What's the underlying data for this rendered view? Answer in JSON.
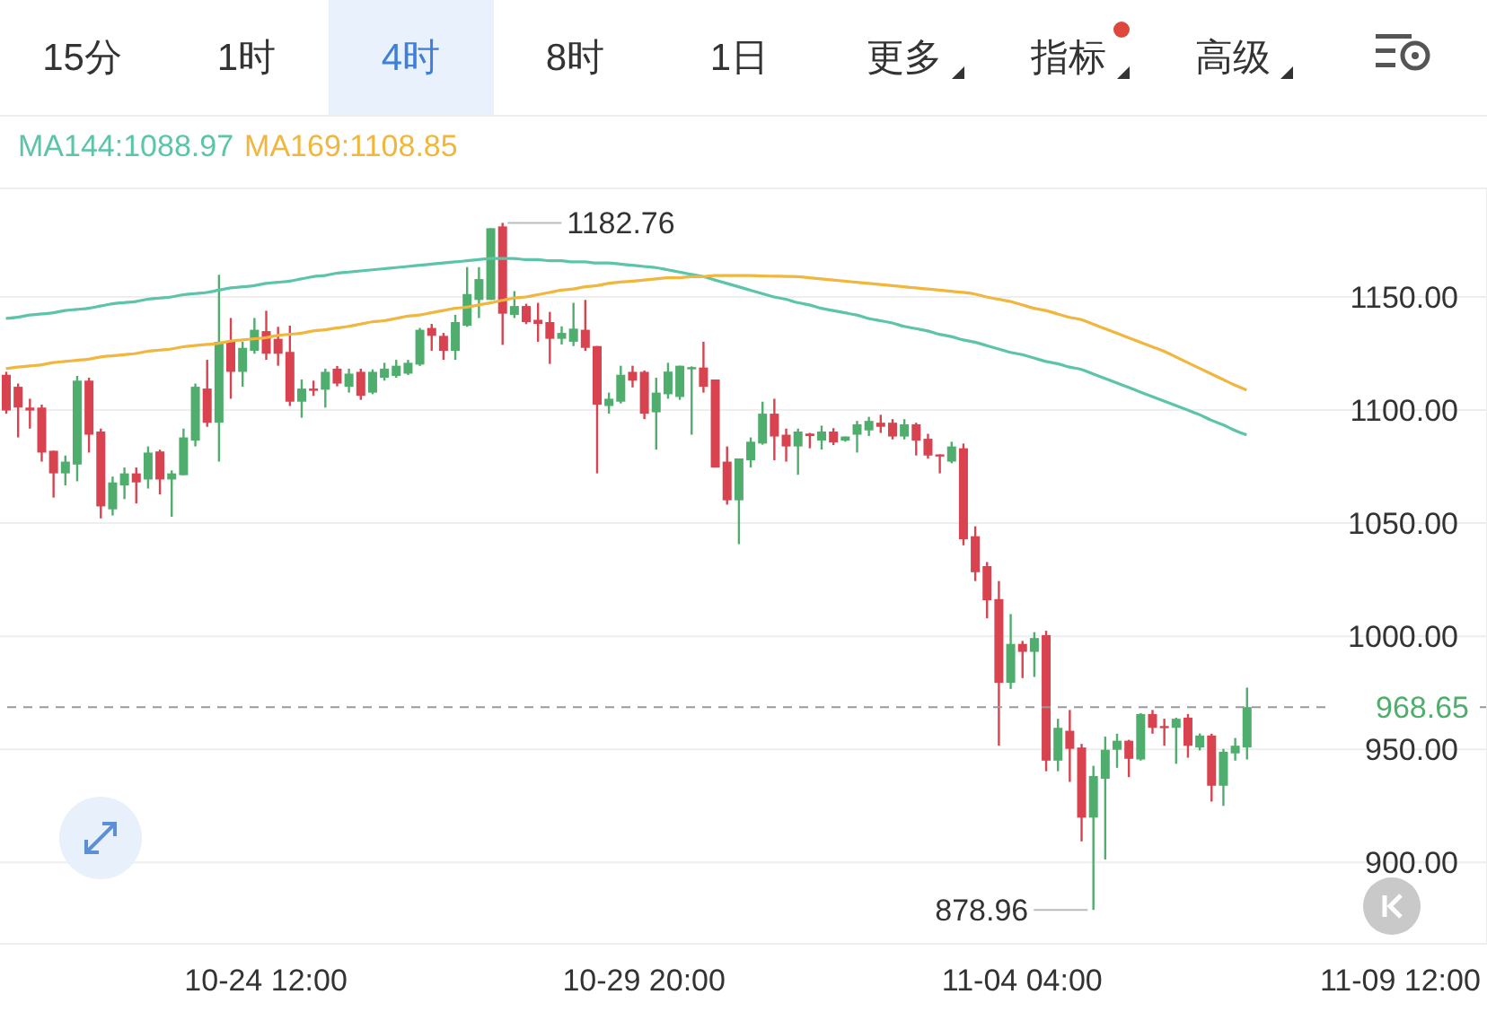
{
  "chart_data": {
    "type": "candlestick",
    "categories": [
      null,
      null,
      null,
      null,
      null,
      null,
      null,
      null,
      null,
      null,
      null,
      null,
      null,
      null,
      null,
      null,
      null,
      null,
      null,
      null,
      null,
      null,
      "10-24 12:00",
      null,
      null,
      null,
      null,
      null,
      null,
      null,
      null,
      null,
      null,
      null,
      null,
      null,
      null,
      null,
      null,
      null,
      null,
      null,
      null,
      null,
      null,
      null,
      null,
      null,
      null,
      null,
      null,
      null,
      null,
      null,
      "10-29 20:00",
      null,
      null,
      null,
      null,
      null,
      null,
      null,
      null,
      null,
      null,
      null,
      null,
      null,
      null,
      null,
      null,
      null,
      null,
      null,
      null,
      null,
      null,
      null,
      null,
      null,
      null,
      null,
      null,
      null,
      null,
      null,
      "11-04 04:00",
      null,
      null,
      null,
      null,
      null,
      null,
      null,
      null,
      null,
      null,
      null,
      null,
      null,
      null,
      null,
      null,
      null,
      null,
      null,
      null,
      null,
      null,
      null,
      null,
      null,
      null,
      null,
      null,
      null,
      null,
      null,
      "11-09 12:00"
    ],
    "ohlc": [
      [
        1115.6,
        1116.9,
        1098.4,
        1099.8
      ],
      [
        1110.3,
        1111.7,
        1087.9,
        1101.1
      ],
      [
        1101.1,
        1105,
        1091.8,
        1099.8
      ],
      [
        1101.1,
        1102.4,
        1077.2,
        1081.2
      ],
      [
        1082,
        1082,
        1061.3,
        1072
      ],
      [
        1072,
        1079.9,
        1066.7,
        1077.2
      ],
      [
        1075.9,
        1115.1,
        1068.5,
        1113
      ],
      [
        1113,
        1114.3,
        1081.2,
        1089.1
      ],
      [
        1090.5,
        1091.8,
        1052.1,
        1057.4
      ],
      [
        1056.1,
        1070.6,
        1053.4,
        1068
      ],
      [
        1066.7,
        1074.6,
        1060.6,
        1072
      ],
      [
        1072,
        1074.6,
        1058.7,
        1068
      ],
      [
        1069.3,
        1083.9,
        1065.3,
        1081.2
      ],
      [
        1081.7,
        1082.5,
        1062.7,
        1069.3
      ],
      [
        1069.3,
        1073.3,
        1052.8,
        1072
      ],
      [
        1071.2,
        1091.8,
        1071.2,
        1087.9
      ],
      [
        1086.5,
        1111.7,
        1083.9,
        1110.3
      ],
      [
        1109.5,
        1122.2,
        1092.6,
        1094.4
      ],
      [
        1094.4,
        1159.8,
        1077.2,
        1130.2
      ],
      [
        1130.2,
        1140.7,
        1105,
        1116.9
      ],
      [
        1116.9,
        1130.2,
        1110.3,
        1127.5
      ],
      [
        1126.2,
        1140.7,
        1124.9,
        1135.5
      ],
      [
        1134.9,
        1143.9,
        1122.2,
        1124.9
      ],
      [
        1131.5,
        1136.8,
        1119.6,
        1124.9
      ],
      [
        1125.7,
        1137.3,
        1101.8,
        1103.7
      ],
      [
        1103.7,
        1113.5,
        1096.6,
        1109.5
      ],
      [
        1109.5,
        1113,
        1106.3,
        1108.5
      ],
      [
        1109,
        1118.3,
        1101.1,
        1116.9
      ],
      [
        1118.3,
        1119.5,
        1110.5,
        1111.7
      ],
      [
        1110.3,
        1118.3,
        1107.7,
        1116.1
      ],
      [
        1116.9,
        1118.3,
        1104.5,
        1106.3
      ],
      [
        1107.7,
        1118,
        1107,
        1116.9
      ],
      [
        1114.3,
        1120.9,
        1113,
        1118.3
      ],
      [
        1115.1,
        1122.2,
        1114.3,
        1119.6
      ],
      [
        1116.1,
        1122.2,
        1115.5,
        1120.9
      ],
      [
        1120.1,
        1136.3,
        1119.5,
        1135.5
      ],
      [
        1136.3,
        1138.1,
        1126.2,
        1132.8
      ],
      [
        1132.8,
        1134.1,
        1122.2,
        1126.2
      ],
      [
        1126.2,
        1142.1,
        1122.2,
        1138.9
      ],
      [
        1137.3,
        1163.2,
        1136.8,
        1151.3
      ],
      [
        1148.7,
        1163.2,
        1140.7,
        1157.9
      ],
      [
        1148.7,
        1180.4,
        1148.7,
        1180.4
      ],
      [
        1181.2,
        1182.76,
        1128.8,
        1142.6
      ],
      [
        1142.1,
        1152.6,
        1140.7,
        1146
      ],
      [
        1146,
        1147,
        1138,
        1138.9
      ],
      [
        1139.9,
        1147.4,
        1130.2,
        1138.1
      ],
      [
        1138.9,
        1143.4,
        1120.4,
        1131.5
      ],
      [
        1131.5,
        1137,
        1129,
        1134.1
      ],
      [
        1130.2,
        1147.4,
        1128.3,
        1136
      ],
      [
        1135.5,
        1148.7,
        1126.2,
        1127.5
      ],
      [
        1128.3,
        1128.3,
        1072,
        1102.4
      ],
      [
        1101.8,
        1107.7,
        1098.4,
        1105
      ],
      [
        1103.7,
        1119.6,
        1102.9,
        1115.6
      ],
      [
        1116.9,
        1119.6,
        1110,
        1113
      ],
      [
        1116.9,
        1117.5,
        1096,
        1098.4
      ],
      [
        1099,
        1114.3,
        1082.5,
        1107.7
      ],
      [
        1107,
        1120.9,
        1105,
        1117
      ],
      [
        1105.8,
        1119.6,
        1104.5,
        1119.6
      ],
      [
        1118,
        1119.3,
        1089.1,
        1119
      ],
      [
        1118.8,
        1130.2,
        1107.7,
        1110.3
      ],
      [
        1113.5,
        1113.5,
        1074.6,
        1074.6
      ],
      [
        1077.2,
        1083.9,
        1058.2,
        1060.1
      ],
      [
        1060.1,
        1078.6,
        1040.7,
        1078.6
      ],
      [
        1077.8,
        1087.9,
        1074.6,
        1086
      ],
      [
        1085.2,
        1103.7,
        1084.7,
        1098.4
      ],
      [
        1098.4,
        1105,
        1077.8,
        1088.3
      ],
      [
        1089.1,
        1091.8,
        1077.2,
        1083.9
      ],
      [
        1083.9,
        1091.8,
        1071.4,
        1090.5
      ],
      [
        1089.6,
        1089.9,
        1083.1,
        1088.5
      ],
      [
        1086.5,
        1093.1,
        1082.5,
        1090.5
      ],
      [
        1090.5,
        1092,
        1084.5,
        1085.7
      ],
      [
        1086.5,
        1088.3,
        1086,
        1088.3
      ],
      [
        1089.1,
        1095.2,
        1081.2,
        1093.7
      ],
      [
        1091,
        1097,
        1088.5,
        1095.2
      ],
      [
        1094.4,
        1097.9,
        1089.9,
        1092.6
      ],
      [
        1094.4,
        1096,
        1087,
        1088.3
      ],
      [
        1088.3,
        1096,
        1087,
        1093.7
      ],
      [
        1093.7,
        1094.4,
        1079.9,
        1086.5
      ],
      [
        1087.3,
        1089.5,
        1078.5,
        1079.9
      ],
      [
        1080.4,
        1080.4,
        1072,
        1079.6
      ],
      [
        1077.2,
        1086,
        1076.5,
        1083.9
      ],
      [
        1083.1,
        1085.2,
        1040.2,
        1042.9
      ],
      [
        1044.2,
        1048.6,
        1024.4,
        1028.3
      ],
      [
        1031,
        1032.8,
        1007.9,
        1015.9
      ],
      [
        1016.4,
        1024.4,
        951.6,
        979.4
      ],
      [
        979.4,
        1009.8,
        976.7,
        996.6
      ],
      [
        996.6,
        997.9,
        981.5,
        993.1
      ],
      [
        993.1,
        1001.8,
        982,
        999.2
      ],
      [
        1000.5,
        1002.4,
        940.3,
        945
      ],
      [
        945,
        963.5,
        940.3,
        959.5
      ],
      [
        958.2,
        967.4,
        935.6,
        950.2
      ],
      [
        950.8,
        952.4,
        909.3,
        919.8
      ],
      [
        919.8,
        942.7,
        878.96,
        938.2
      ],
      [
        937,
        955.6,
        901.3,
        949.8
      ],
      [
        949.8,
        956.9,
        941.8,
        953.8
      ],
      [
        953.8,
        954.2,
        937.7,
        945.8
      ],
      [
        945.5,
        966,
        945,
        965.6
      ],
      [
        965.6,
        967.4,
        956.9,
        959.5
      ],
      [
        960.3,
        963.5,
        951.6,
        959.5
      ],
      [
        959.5,
        964,
        943.6,
        963.5
      ],
      [
        964,
        965.6,
        946.3,
        951.6
      ],
      [
        950.8,
        957,
        949.5,
        956.1
      ],
      [
        956.1,
        956.9,
        926.9,
        933.9
      ],
      [
        933.9,
        950.2,
        925,
        948.9
      ],
      [
        948.2,
        955,
        945,
        951.6
      ],
      [
        950.8,
        977.3,
        945.5,
        968.65
      ],
      null,
      null,
      null,
      null,
      null,
      null,
      null,
      null,
      null,
      null,
      null,
      null,
      null
    ],
    "colors": [
      "#d8434f",
      "#d8434f",
      "#d8434f",
      "#d8434f",
      "#d8434f",
      "#4fae6d",
      "#4fae6d",
      "#d8434f",
      "#d8434f",
      "#4fae6d",
      "#4fae6d",
      "#d8434f",
      "#4fae6d",
      "#d8434f",
      "#4fae6d",
      "#4fae6d",
      "#4fae6d",
      "#d8434f",
      "#4fae6d",
      "#d8434f",
      "#4fae6d",
      "#4fae6d",
      "#d8434f",
      "#d8434f",
      "#d8434f",
      "#4fae6d",
      "#d8434f",
      "#4fae6d",
      "#d8434f",
      "#4fae6d",
      "#d8434f",
      "#4fae6d",
      "#4fae6d",
      "#4fae6d",
      "#4fae6d",
      "#4fae6d",
      "#d8434f",
      "#d8434f",
      "#4fae6d",
      "#4fae6d",
      "#4fae6d",
      "#4fae6d",
      "#d8434f",
      "#4fae6d",
      "#d8434f",
      "#d8434f",
      "#d8434f",
      "#4fae6d",
      "#4fae6d",
      "#d8434f",
      "#d8434f",
      "#4fae6d",
      "#4fae6d",
      "#d8434f",
      "#d8434f",
      "#4fae6d",
      "#4fae6d",
      "#4fae6d",
      "#4fae6d",
      "#d8434f",
      "#d8434f",
      "#d8434f",
      "#4fae6d",
      "#4fae6d",
      "#4fae6d",
      "#d8434f",
      "#d8434f",
      "#4fae6d",
      "#d8434f",
      "#4fae6d",
      "#d8434f",
      "#4fae6d",
      "#4fae6d",
      "#4fae6d",
      "#d8434f",
      "#d8434f",
      "#4fae6d",
      "#d8434f",
      "#d8434f",
      "#d8434f",
      "#4fae6d",
      "#d8434f",
      "#d8434f",
      "#d8434f",
      "#d8434f",
      "#4fae6d",
      "#d8434f",
      "#4fae6d",
      "#d8434f",
      "#4fae6d",
      "#d8434f",
      "#d8434f",
      "#4fae6d",
      "#4fae6d",
      "#4fae6d",
      "#d8434f",
      "#4fae6d",
      "#d8434f",
      "#d8434f",
      "#4fae6d",
      "#d8434f",
      "#4fae6d",
      "#d8434f",
      "#4fae6d",
      "#4fae6d",
      "#4fae6d",
      null,
      null,
      null,
      null,
      null,
      null,
      null,
      null,
      null,
      null,
      null,
      null,
      null
    ],
    "series": [
      {
        "name": "MA144:1088.97",
        "type": "line",
        "color": "#5cc4a8",
        "values": [
          1140.5,
          1141,
          1142,
          1142.5,
          1143,
          1144,
          1144.5,
          1145,
          1146,
          1147,
          1147.5,
          1148,
          1149,
          1149.5,
          1150,
          1151,
          1151.5,
          1152,
          1153,
          1154,
          1154.5,
          1155,
          1156,
          1156.5,
          1157,
          1158,
          1159,
          1159.5,
          1160.5,
          1161,
          1161.5,
          1162,
          1162.5,
          1163,
          1163.5,
          1164,
          1164.5,
          1165,
          1165.5,
          1166,
          1166.5,
          1167,
          1167,
          1167,
          1166.5,
          1166.5,
          1166,
          1166,
          1165.5,
          1165.5,
          1165,
          1165,
          1164.5,
          1164,
          1163.5,
          1163,
          1162,
          1161,
          1160,
          1159,
          1157.5,
          1156,
          1154.5,
          1153,
          1151.5,
          1150,
          1149,
          1147.5,
          1146.5,
          1145,
          1144,
          1143,
          1142,
          1140.5,
          1139.5,
          1138.5,
          1137,
          1136,
          1135,
          1133.5,
          1132.5,
          1131,
          1130,
          1128.5,
          1127,
          1125.5,
          1124.5,
          1123,
          1121.5,
          1120.5,
          1119,
          1118,
          1116,
          1114,
          1112,
          1110,
          1108,
          1106,
          1104,
          1102,
          1100,
          1098,
          1095.5,
          1093.5,
          1091,
          1088.97,
          null,
          null,
          null,
          null,
          null,
          null,
          null,
          null,
          null,
          null,
          null,
          null,
          null
        ]
      },
      {
        "name": "MA169:1108.85",
        "type": "line",
        "color": "#f0b63d",
        "values": [
          1118.3,
          1119,
          1119.5,
          1120,
          1121,
          1121.5,
          1122,
          1122.5,
          1123.5,
          1124,
          1124.5,
          1125,
          1126,
          1126.5,
          1127,
          1128,
          1128.5,
          1129,
          1129.5,
          1130.5,
          1131,
          1131.5,
          1132,
          1133,
          1133.5,
          1134,
          1135,
          1135.5,
          1136.3,
          1137,
          1138,
          1139,
          1139.5,
          1140.5,
          1141.5,
          1142,
          1143,
          1144,
          1145,
          1145.5,
          1146.5,
          1147.4,
          1148.5,
          1149.5,
          1150,
          1151,
          1152,
          1153,
          1153.5,
          1154.5,
          1155,
          1156,
          1156.6,
          1157,
          1157.5,
          1158,
          1158.5,
          1158.5,
          1159,
          1159,
          1159.5,
          1159.5,
          1159.5,
          1159.5,
          1159.3,
          1159.2,
          1159.1,
          1159,
          1158.5,
          1158,
          1157.5,
          1157,
          1156.5,
          1156,
          1155.5,
          1155,
          1154.5,
          1154,
          1153.5,
          1153,
          1152.5,
          1152,
          1151.3,
          1150,
          1149,
          1148,
          1146.5,
          1145,
          1144,
          1142.5,
          1141,
          1140,
          1138,
          1136,
          1134,
          1132,
          1130,
          1128,
          1126,
          1123.5,
          1121,
          1118.5,
          1116,
          1113.5,
          1111,
          1108.85,
          null,
          null,
          null,
          null,
          null,
          null,
          null,
          null,
          null,
          null,
          null,
          null,
          null
        ]
      }
    ],
    "ylim": [
      864,
      1198
    ],
    "yticks": [
      {
        "value": 900,
        "label": "900.00"
      },
      {
        "value": 950,
        "label": "950.00"
      },
      {
        "value": 1000,
        "label": "1000.00"
      },
      {
        "value": 1050,
        "label": "1050.00"
      },
      {
        "value": 1100,
        "label": "1100.00"
      },
      {
        "value": 1150,
        "label": "1150.00"
      }
    ],
    "grid": "y",
    "legend": "top left",
    "ref_lines": [
      {
        "axis": "y",
        "value": 968.65,
        "label": "968.65",
        "color": "#9a9a9a",
        "line_style": "dashed"
      }
    ],
    "annotations": [
      "1182.76",
      "878.96",
      "15分",
      "1时",
      "4时",
      "8时",
      "1日",
      "更多",
      "指标",
      "高级"
    ]
  }
}
